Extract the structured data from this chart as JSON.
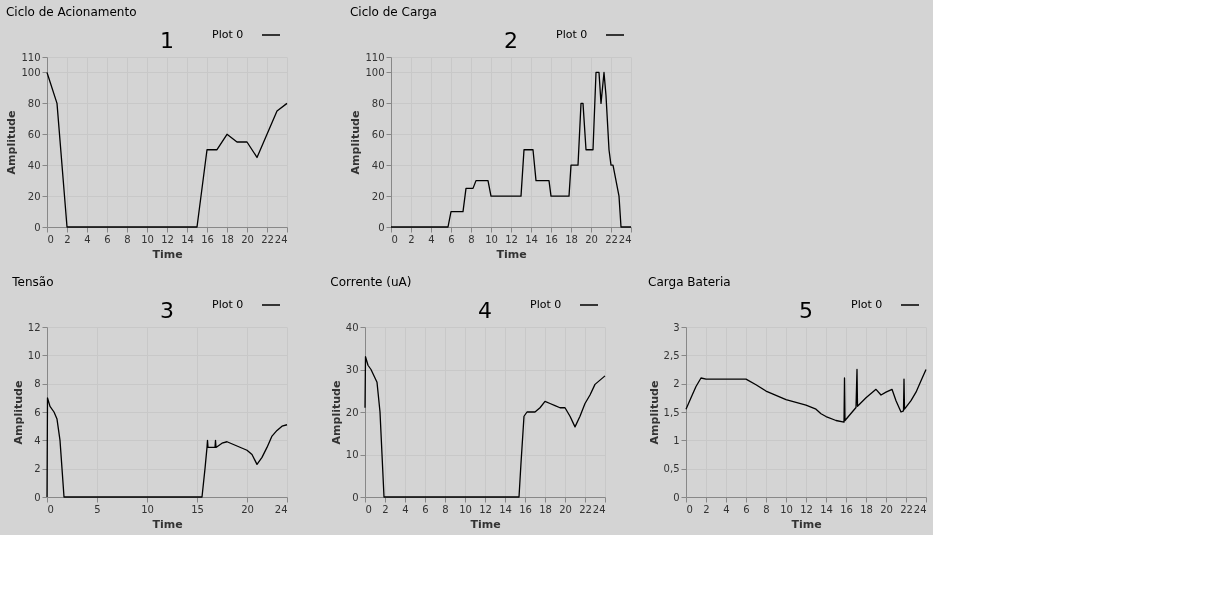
{
  "chart_data": [
    {
      "type": "line",
      "title": "Ciclo de Acionamento",
      "xlabel": "Time",
      "ylabel": "Amplitude",
      "annotations": [
        "1"
      ],
      "legend": "top right",
      "grid": true,
      "xlim": [
        0,
        24
      ],
      "xticks": [
        0,
        2,
        4,
        6,
        8,
        10,
        12,
        14,
        16,
        18,
        20,
        22,
        24
      ],
      "ylim": [
        0,
        110
      ],
      "yticks": [
        0,
        20,
        40,
        60,
        80,
        100,
        110
      ],
      "series": [
        {
          "name": "Plot 0",
          "color": "#000000",
          "x": [
            0,
            1,
            2,
            3,
            4,
            5,
            6,
            7,
            8,
            9,
            10,
            11,
            12,
            13,
            14,
            15,
            16,
            17,
            18,
            19,
            20,
            21,
            22,
            23,
            24
          ],
          "values": [
            100,
            80,
            0,
            0,
            0,
            0,
            0,
            0,
            0,
            0,
            0,
            0,
            0,
            0,
            0,
            0,
            50,
            50,
            60,
            55,
            55,
            45,
            60,
            75,
            80
          ]
        }
      ]
    },
    {
      "type": "line",
      "title": "Ciclo de Carga",
      "xlabel": "Time",
      "ylabel": "Amplitude",
      "annotations": [
        "2"
      ],
      "legend": "top right",
      "grid": true,
      "xlim": [
        0,
        24
      ],
      "xticks": [
        0,
        2,
        4,
        6,
        8,
        10,
        12,
        14,
        16,
        18,
        20,
        22,
        24
      ],
      "ylim": [
        0,
        110
      ],
      "yticks": [
        0,
        20,
        40,
        60,
        80,
        100,
        110
      ],
      "series": [
        {
          "name": "Plot 0",
          "color": "#000000",
          "x": [
            0,
            5.7,
            6,
            7.2,
            7.5,
            8.2,
            8.5,
            9.7,
            10,
            13,
            13.3,
            14.2,
            14.5,
            15.8,
            16,
            17.8,
            18,
            18.7,
            19,
            19.2,
            19.5,
            20.2,
            20.5,
            20.8,
            21,
            21.3,
            21.5,
            21.8,
            22,
            22.2,
            22.8,
            23,
            24
          ],
          "values": [
            0,
            0,
            10,
            10,
            25,
            25,
            30,
            30,
            20,
            20,
            50,
            50,
            30,
            30,
            20,
            20,
            40,
            40,
            80,
            80,
            50,
            50,
            100,
            100,
            80,
            100,
            85,
            50,
            40,
            40,
            20,
            0,
            0
          ]
        }
      ]
    },
    {
      "type": "line",
      "title": "Tensão",
      "xlabel": "Time",
      "ylabel": "Amplitude",
      "annotations": [
        "3"
      ],
      "legend": "top right",
      "grid": true,
      "xlim": [
        0,
        24
      ],
      "xticks": [
        0,
        5,
        10,
        15,
        20,
        24
      ],
      "ylim": [
        0,
        12
      ],
      "yticks": [
        0,
        2,
        4,
        6,
        8,
        10,
        12
      ],
      "series": [
        {
          "name": "Plot 0",
          "color": "#000000",
          "x": [
            0,
            0.05,
            0.3,
            0.7,
            1,
            1.3,
            1.5,
            1.7,
            15.5,
            15.8,
            16,
            16.05,
            16.1,
            16.5,
            16.8,
            16.85,
            16.9,
            17.5,
            18,
            19,
            20,
            20.5,
            21,
            21.5,
            22,
            22.5,
            23,
            23.5,
            24
          ],
          "values": [
            0,
            7,
            6.4,
            6,
            5.5,
            4,
            2,
            0,
            0,
            2,
            3.5,
            4,
            3.5,
            3.5,
            3.5,
            4,
            3.5,
            3.8,
            3.9,
            3.6,
            3.3,
            3,
            2.3,
            2.8,
            3.5,
            4.3,
            4.7,
            5,
            5.1
          ]
        }
      ]
    },
    {
      "type": "line",
      "title": "Corrente (uA)",
      "xlabel": "Time",
      "ylabel": "Amplitude",
      "annotations": [
        "4"
      ],
      "legend": "top right",
      "grid": true,
      "xlim": [
        0,
        24
      ],
      "xticks": [
        0,
        2,
        4,
        6,
        8,
        10,
        12,
        14,
        16,
        18,
        20,
        22,
        24
      ],
      "ylim": [
        0,
        40
      ],
      "yticks": [
        0,
        10,
        20,
        30,
        40
      ],
      "series": [
        {
          "name": "Plot 0",
          "color": "#000000",
          "x": [
            0,
            0.05,
            0.3,
            0.6,
            1,
            1.2,
            1.5,
            1.7,
            1.9,
            15.4,
            15.6,
            15.9,
            16.2,
            17,
            17.5,
            18,
            18.5,
            19,
            19.5,
            20,
            20.5,
            21,
            21.5,
            22,
            22.5,
            23,
            23.5,
            24
          ],
          "values": [
            21,
            33,
            31,
            30,
            28,
            27,
            20,
            10,
            0,
            0,
            8,
            19,
            20,
            20,
            21,
            22.5,
            22,
            21.5,
            21,
            21,
            19,
            16.5,
            19,
            22,
            24,
            26.5,
            27.5,
            28.5
          ]
        }
      ]
    },
    {
      "type": "line",
      "title": "Carga Bateria",
      "xlabel": "Time",
      "ylabel": "Amplitude",
      "annotations": [
        "5"
      ],
      "legend": "top right",
      "grid": true,
      "xlim": [
        0,
        24
      ],
      "xticks": [
        0,
        2,
        4,
        6,
        8,
        10,
        12,
        14,
        16,
        18,
        20,
        22,
        24
      ],
      "ylim": [
        0,
        3
      ],
      "yticks": [
        0,
        {
          "value": 0.5,
          "label": "0,5"
        },
        1,
        {
          "value": 1.5,
          "label": "1,5"
        },
        2,
        {
          "value": 2.5,
          "label": "2,5"
        },
        3
      ],
      "series": [
        {
          "name": "Plot 0",
          "color": "#000000",
          "x": [
            0,
            0.5,
            1,
            1.5,
            2,
            6,
            7,
            8,
            10,
            12,
            13,
            13.5,
            14,
            15,
            15.8,
            15.85,
            15.9,
            17,
            17.1,
            17.15,
            18,
            19,
            19.5,
            20,
            20.6,
            21,
            21.5,
            21.75,
            21.8,
            21.85,
            22.5,
            23,
            23.5,
            24
          ],
          "values": [
            1.55,
            1.75,
            1.95,
            2.1,
            2.08,
            2.08,
            1.98,
            1.87,
            1.72,
            1.62,
            1.55,
            1.47,
            1.42,
            1.35,
            1.32,
            2.1,
            1.35,
            1.58,
            2.25,
            1.6,
            1.75,
            1.9,
            1.8,
            1.85,
            1.9,
            1.7,
            1.5,
            1.52,
            2.08,
            1.55,
            1.7,
            1.85,
            2.05,
            2.25
          ]
        }
      ]
    }
  ]
}
